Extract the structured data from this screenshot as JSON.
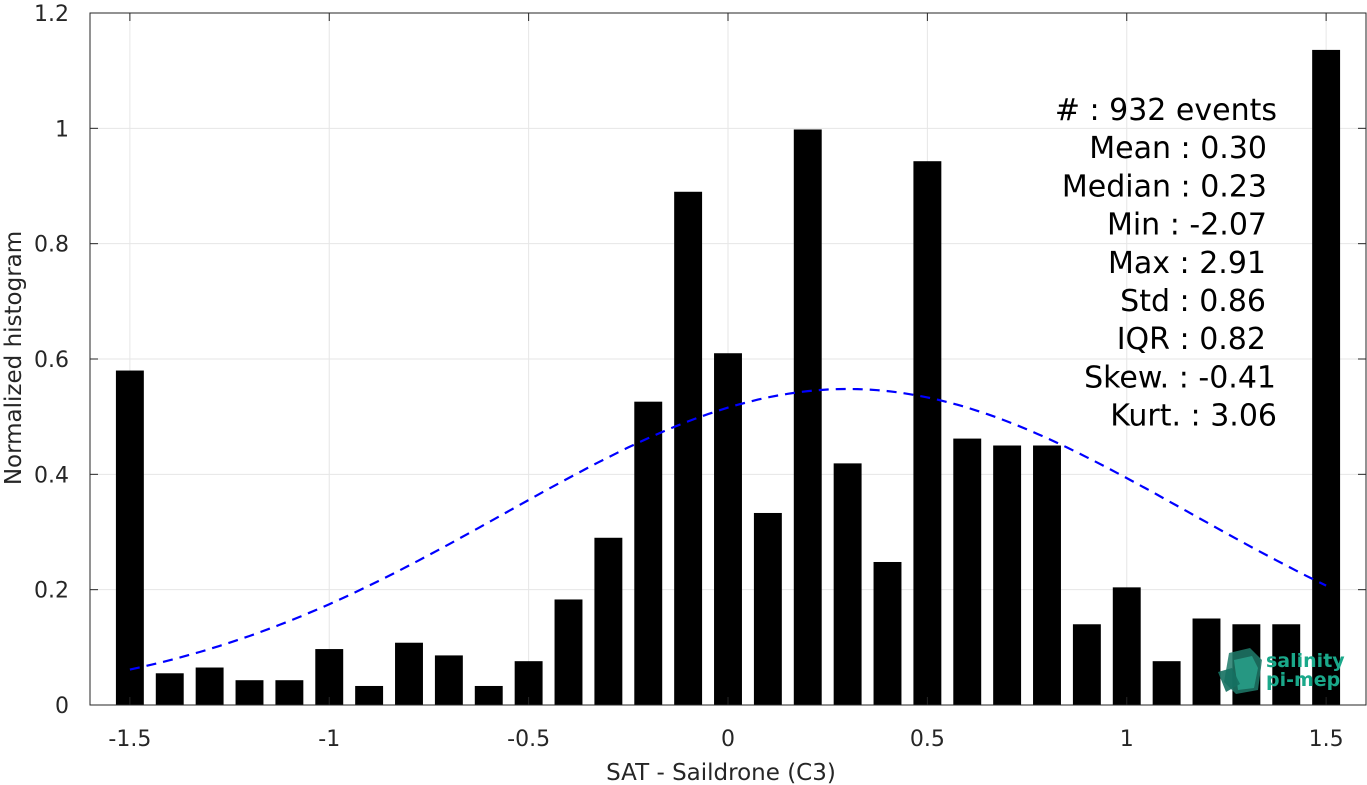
{
  "chart_data": {
    "type": "bar",
    "xlabel": "SAT - Saildrone (C3)",
    "ylabel": "Normalized histogram",
    "xlim": [
      -1.6,
      1.6
    ],
    "ylim": [
      0,
      1.2
    ],
    "grid": true,
    "x_ticks": [
      -1.5,
      -1,
      -0.5,
      0,
      0.5,
      1,
      1.5
    ],
    "x_tick_labels": [
      "-1.5",
      "-1",
      "-0.5",
      "0",
      "0.5",
      "1",
      "1.5"
    ],
    "y_ticks": [
      0,
      0.2,
      0.4,
      0.6,
      0.8,
      1,
      1.2
    ],
    "y_tick_labels": [
      "0",
      "0.2",
      "0.4",
      "0.6",
      "0.8",
      "1",
      "1.2"
    ],
    "bar_width": 0.07,
    "bars": {
      "x": [
        -1.5,
        -1.4,
        -1.3,
        -1.2,
        -1.1,
        -1.0,
        -0.9,
        -0.8,
        -0.7,
        -0.6,
        -0.5,
        -0.4,
        -0.3,
        -0.2,
        -0.1,
        0.0,
        0.1,
        0.2,
        0.3,
        0.4,
        0.5,
        0.6,
        0.7,
        0.8,
        0.9,
        1.0,
        1.1,
        1.2,
        1.3,
        1.4,
        1.5
      ],
      "values": [
        0.58,
        0.055,
        0.065,
        0.043,
        0.043,
        0.097,
        0.033,
        0.108,
        0.086,
        0.033,
        0.076,
        0.183,
        0.29,
        0.526,
        0.89,
        0.61,
        0.333,
        0.998,
        0.419,
        0.248,
        0.943,
        0.462,
        0.45,
        0.45,
        0.14,
        0.204,
        0.076,
        0.15,
        0.14,
        0.14,
        1.136
      ],
      "color": "#000000"
    },
    "fit_curve": {
      "style": "dashed",
      "color": "#0000ff",
      "mean": 0.3,
      "std": 0.86,
      "peak": 0.548,
      "x_range": [
        -1.5,
        1.5
      ]
    },
    "stats": [
      "#  : 932 events",
      "Mean : 0.30",
      "Median : 0.23",
      "Min : -2.07",
      "Max : 2.91",
      "Std : 0.86",
      "IQR : 0.82",
      "Skew. : -0.41",
      "Kurt. : 3.06"
    ],
    "logo": {
      "line1": "salinity",
      "line2": "pi-mep",
      "color": "#1aa88a"
    }
  }
}
